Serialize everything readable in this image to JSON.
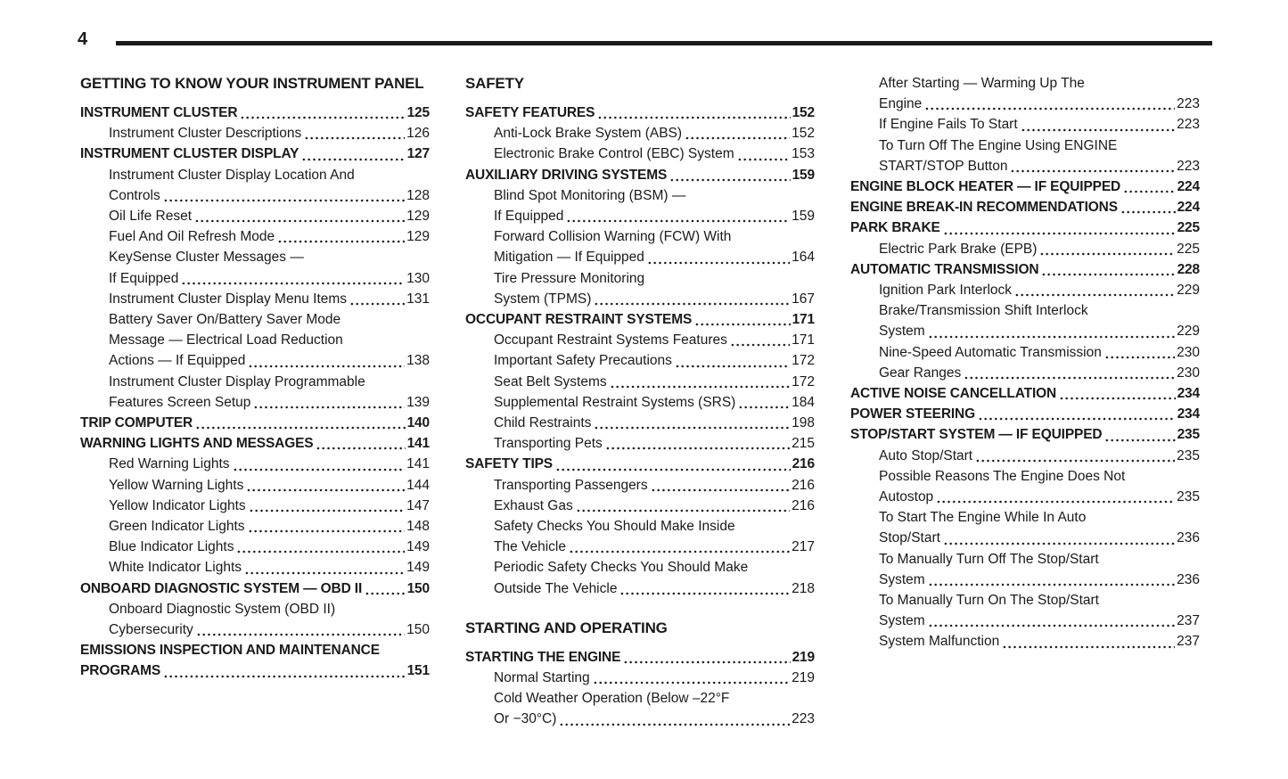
{
  "page": {
    "number": "4"
  },
  "colors": {
    "ink": "#1a1a1a",
    "background": "#ffffff"
  },
  "columns": [
    {
      "blocks": [
        {
          "section": "GETTING TO KNOW YOUR INSTRUMENT PANEL",
          "entries": [
            {
              "level": "main",
              "lines": [
                "INSTRUMENT CLUSTER"
              ],
              "page": "125"
            },
            {
              "level": "sub",
              "lines": [
                "Instrument Cluster Descriptions"
              ],
              "page": "126"
            },
            {
              "level": "main",
              "lines": [
                "INSTRUMENT CLUSTER DISPLAY"
              ],
              "page": "127"
            },
            {
              "level": "sub",
              "lines": [
                "Instrument Cluster Display Location And",
                "Controls"
              ],
              "page": "128"
            },
            {
              "level": "sub",
              "lines": [
                "Oil Life Reset"
              ],
              "page": "129"
            },
            {
              "level": "sub",
              "lines": [
                "Fuel And Oil Refresh Mode"
              ],
              "page": "129"
            },
            {
              "level": "sub",
              "lines": [
                "KeySense Cluster Messages —",
                "If Equipped"
              ],
              "page": "130"
            },
            {
              "level": "sub",
              "lines": [
                "Instrument Cluster Display Menu Items"
              ],
              "page": "131"
            },
            {
              "level": "sub",
              "lines": [
                "Battery Saver On/Battery Saver Mode",
                "Message — Electrical Load Reduction",
                "Actions — If Equipped"
              ],
              "page": "138"
            },
            {
              "level": "sub",
              "lines": [
                "Instrument Cluster Display Programmable",
                "Features Screen Setup"
              ],
              "page": "139"
            },
            {
              "level": "main",
              "lines": [
                "TRIP COMPUTER"
              ],
              "page": "140"
            },
            {
              "level": "main",
              "lines": [
                "WARNING LIGHTS AND MESSAGES"
              ],
              "page": "141"
            },
            {
              "level": "sub",
              "lines": [
                "Red Warning Lights"
              ],
              "page": "141"
            },
            {
              "level": "sub",
              "lines": [
                "Yellow Warning Lights"
              ],
              "page": "144"
            },
            {
              "level": "sub",
              "lines": [
                "Yellow Indicator Lights"
              ],
              "page": "147"
            },
            {
              "level": "sub",
              "lines": [
                "Green Indicator Lights"
              ],
              "page": "148"
            },
            {
              "level": "sub",
              "lines": [
                "Blue Indicator Lights"
              ],
              "page": "149"
            },
            {
              "level": "sub",
              "lines": [
                "White Indicator Lights"
              ],
              "page": "149"
            },
            {
              "level": "main",
              "lines": [
                "ONBOARD DIAGNOSTIC SYSTEM — OBD II"
              ],
              "page": "150"
            },
            {
              "level": "sub",
              "lines": [
                "Onboard Diagnostic System (OBD II)",
                "Cybersecurity"
              ],
              "page": "150"
            },
            {
              "level": "main",
              "lines": [
                "EMISSIONS INSPECTION AND MAINTENANCE",
                "PROGRAMS"
              ],
              "page": "151"
            }
          ]
        }
      ]
    },
    {
      "blocks": [
        {
          "section": "SAFETY",
          "entries": [
            {
              "level": "main",
              "lines": [
                "SAFETY FEATURES"
              ],
              "page": "152"
            },
            {
              "level": "sub",
              "lines": [
                "Anti-Lock Brake System (ABS)"
              ],
              "page": "152"
            },
            {
              "level": "sub",
              "lines": [
                "Electronic Brake Control (EBC) System"
              ],
              "page": "153"
            },
            {
              "level": "main",
              "lines": [
                "AUXILIARY DRIVING SYSTEMS"
              ],
              "page": "159"
            },
            {
              "level": "sub",
              "lines": [
                "Blind Spot Monitoring (BSM) —",
                "If Equipped"
              ],
              "page": "159"
            },
            {
              "level": "sub",
              "lines": [
                "Forward Collision Warning (FCW) With",
                "Mitigation — If Equipped"
              ],
              "page": "164"
            },
            {
              "level": "sub",
              "lines": [
                "Tire Pressure Monitoring",
                "System (TPMS)"
              ],
              "page": "167"
            },
            {
              "level": "main",
              "lines": [
                "OCCUPANT RESTRAINT SYSTEMS"
              ],
              "page": "171"
            },
            {
              "level": "sub",
              "lines": [
                "Occupant Restraint Systems Features"
              ],
              "page": "171"
            },
            {
              "level": "sub",
              "lines": [
                "Important Safety Precautions"
              ],
              "page": "172"
            },
            {
              "level": "sub",
              "lines": [
                "Seat Belt Systems"
              ],
              "page": "172"
            },
            {
              "level": "sub",
              "lines": [
                "Supplemental Restraint Systems (SRS)"
              ],
              "page": "184"
            },
            {
              "level": "sub",
              "lines": [
                "Child Restraints"
              ],
              "page": "198"
            },
            {
              "level": "sub",
              "lines": [
                "Transporting Pets"
              ],
              "page": "215"
            },
            {
              "level": "main",
              "lines": [
                "SAFETY TIPS"
              ],
              "page": "216"
            },
            {
              "level": "sub",
              "lines": [
                "Transporting Passengers"
              ],
              "page": "216"
            },
            {
              "level": "sub",
              "lines": [
                "Exhaust Gas"
              ],
              "page": "216"
            },
            {
              "level": "sub",
              "lines": [
                "Safety Checks You Should Make Inside",
                "The Vehicle"
              ],
              "page": "217"
            },
            {
              "level": "sub",
              "lines": [
                "Periodic Safety Checks You Should Make",
                "Outside The Vehicle"
              ],
              "page": "218"
            }
          ]
        },
        {
          "section": "STARTING AND OPERATING",
          "entries": [
            {
              "level": "main",
              "lines": [
                "STARTING THE ENGINE"
              ],
              "page": "219"
            },
            {
              "level": "sub",
              "lines": [
                "Normal Starting"
              ],
              "page": "219"
            },
            {
              "level": "sub",
              "lines": [
                "Cold Weather Operation (Below –22°F",
                "Or −30°C)"
              ],
              "page": "223"
            }
          ]
        }
      ]
    },
    {
      "blocks": [
        {
          "section": null,
          "entries": [
            {
              "level": "sub",
              "lines": [
                "After Starting — Warming Up The",
                "Engine"
              ],
              "page": "223"
            },
            {
              "level": "sub",
              "lines": [
                "If Engine Fails To Start"
              ],
              "page": "223"
            },
            {
              "level": "sub",
              "lines": [
                "To Turn Off The Engine Using ENGINE",
                "START/STOP Button"
              ],
              "page": "223"
            },
            {
              "level": "main",
              "lines": [
                "ENGINE BLOCK HEATER — IF EQUIPPED"
              ],
              "page": "224"
            },
            {
              "level": "main",
              "lines": [
                "ENGINE BREAK-IN RECOMMENDATIONS"
              ],
              "page": "224"
            },
            {
              "level": "main",
              "lines": [
                "PARK BRAKE"
              ],
              "page": "225"
            },
            {
              "level": "sub",
              "lines": [
                "Electric Park Brake (EPB)"
              ],
              "page": "225"
            },
            {
              "level": "main",
              "lines": [
                "AUTOMATIC TRANSMISSION"
              ],
              "page": "228"
            },
            {
              "level": "sub",
              "lines": [
                "Ignition Park Interlock"
              ],
              "page": "229"
            },
            {
              "level": "sub",
              "lines": [
                "Brake/Transmission Shift Interlock",
                "System"
              ],
              "page": "229"
            },
            {
              "level": "sub",
              "lines": [
                "Nine-Speed Automatic Transmission"
              ],
              "page": "230"
            },
            {
              "level": "sub",
              "lines": [
                "Gear Ranges"
              ],
              "page": "230"
            },
            {
              "level": "main",
              "lines": [
                "ACTIVE NOISE CANCELLATION"
              ],
              "page": "234"
            },
            {
              "level": "main",
              "lines": [
                "POWER STEERING"
              ],
              "page": "234"
            },
            {
              "level": "main",
              "lines": [
                "STOP/START SYSTEM — IF EQUIPPED"
              ],
              "page": "235"
            },
            {
              "level": "sub",
              "lines": [
                "Auto Stop/Start"
              ],
              "page": "235"
            },
            {
              "level": "sub",
              "lines": [
                "Possible Reasons The Engine Does Not",
                "Autostop"
              ],
              "page": "235"
            },
            {
              "level": "sub",
              "lines": [
                "To Start The Engine While In Auto",
                "Stop/Start"
              ],
              "page": "236"
            },
            {
              "level": "sub",
              "lines": [
                "To Manually Turn Off The Stop/Start",
                "System"
              ],
              "page": "236"
            },
            {
              "level": "sub",
              "lines": [
                "To Manually Turn On The Stop/Start",
                "System"
              ],
              "page": "237"
            },
            {
              "level": "sub",
              "lines": [
                "System Malfunction"
              ],
              "page": "237"
            }
          ]
        }
      ]
    }
  ]
}
